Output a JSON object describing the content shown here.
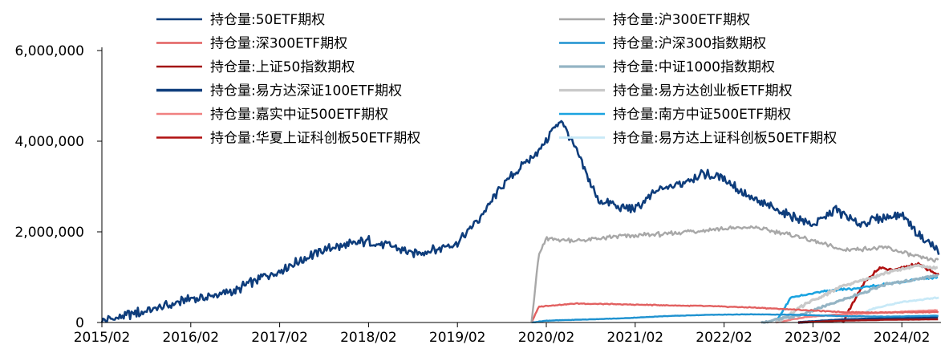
{
  "chart_data": {
    "type": "line",
    "title": "",
    "xlabel": "",
    "ylabel": "",
    "ylim": [
      0,
      6000000
    ],
    "y_ticks": [
      {
        "value": 0,
        "label": "0"
      },
      {
        "value": 2000000,
        "label": "2,000,000"
      },
      {
        "value": 4000000,
        "label": "4,000,000"
      },
      {
        "value": 6000000,
        "label": "6,000,000"
      }
    ],
    "x_ticks": [
      "2015/02",
      "2016/02",
      "2017/02",
      "2018/02",
      "2019/02",
      "2020/02",
      "2021/02",
      "2022/02",
      "2023/02",
      "2024/02"
    ],
    "x_range": [
      "2015/02",
      "2024/07"
    ],
    "grid": false,
    "legend_position": "top",
    "series": [
      {
        "name": "持仓量:50ETF期权",
        "color": "#0e3d7c",
        "width": 2.6,
        "points": [
          [
            "2015/02",
            20000
          ],
          [
            "2015/05",
            150000
          ],
          [
            "2015/08",
            260000
          ],
          [
            "2015/11",
            380000
          ],
          [
            "2016/02",
            520000
          ],
          [
            "2016/05",
            580000
          ],
          [
            "2016/08",
            700000
          ],
          [
            "2016/11",
            950000
          ],
          [
            "2017/02",
            1150000
          ],
          [
            "2017/05",
            1380000
          ],
          [
            "2017/08",
            1620000
          ],
          [
            "2017/11",
            1700000
          ],
          [
            "2018/02",
            1800000
          ],
          [
            "2018/05",
            1700000
          ],
          [
            "2018/08",
            1520000
          ],
          [
            "2018/11",
            1600000
          ],
          [
            "2019/02",
            1750000
          ],
          [
            "2019/05",
            2300000
          ],
          [
            "2019/08",
            3000000
          ],
          [
            "2019/11",
            3500000
          ],
          [
            "2020/01",
            3800000
          ],
          [
            "2020/04",
            4500000
          ],
          [
            "2020/06",
            3800000
          ],
          [
            "2020/09",
            2700000
          ],
          [
            "2020/12",
            2550000
          ],
          [
            "2021/02",
            2500000
          ],
          [
            "2021/05",
            2900000
          ],
          [
            "2021/08",
            3050000
          ],
          [
            "2021/11",
            3300000
          ],
          [
            "2022/02",
            3200000
          ],
          [
            "2022/05",
            2800000
          ],
          [
            "2022/08",
            2550000
          ],
          [
            "2022/11",
            2350000
          ],
          [
            "2023/02",
            2150000
          ],
          [
            "2023/05",
            2500000
          ],
          [
            "2023/08",
            2150000
          ],
          [
            "2023/11",
            2300000
          ],
          [
            "2024/02",
            2400000
          ],
          [
            "2024/04",
            2000000
          ],
          [
            "2024/06",
            1700000
          ],
          [
            "2024/07",
            1600000
          ]
        ]
      },
      {
        "name": "持仓量:沪300ETF期权",
        "color": "#a8a8a8",
        "width": 2.4,
        "points": [
          [
            "2019/12",
            0
          ],
          [
            "2020/01",
            1500000
          ],
          [
            "2020/02",
            1850000
          ],
          [
            "2020/06",
            1800000
          ],
          [
            "2020/12",
            1900000
          ],
          [
            "2021/06",
            1950000
          ],
          [
            "2021/12",
            2050000
          ],
          [
            "2022/06",
            2100000
          ],
          [
            "2022/12",
            1900000
          ],
          [
            "2023/06",
            1600000
          ],
          [
            "2023/12",
            1650000
          ],
          [
            "2024/04",
            1450000
          ],
          [
            "2024/07",
            1350000
          ]
        ]
      },
      {
        "name": "持仓量:深300ETF期权",
        "color": "#e26060",
        "width": 2.4,
        "points": [
          [
            "2019/12",
            0
          ],
          [
            "2020/01",
            350000
          ],
          [
            "2020/06",
            420000
          ],
          [
            "2020/12",
            400000
          ],
          [
            "2021/06",
            380000
          ],
          [
            "2021/12",
            360000
          ],
          [
            "2022/06",
            330000
          ],
          [
            "2022/12",
            280000
          ],
          [
            "2023/06",
            230000
          ],
          [
            "2023/12",
            220000
          ],
          [
            "2024/07",
            230000
          ]
        ]
      },
      {
        "name": "持仓量:沪深300指数期权",
        "color": "#1f92d0",
        "width": 2.4,
        "points": [
          [
            "2019/12",
            0
          ],
          [
            "2020/02",
            40000
          ],
          [
            "2020/12",
            90000
          ],
          [
            "2021/06",
            140000
          ],
          [
            "2021/12",
            170000
          ],
          [
            "2022/06",
            180000
          ],
          [
            "2022/12",
            170000
          ],
          [
            "2023/06",
            140000
          ],
          [
            "2023/12",
            130000
          ],
          [
            "2024/07",
            150000
          ]
        ]
      },
      {
        "name": "持仓量:上证50指数期权",
        "color": "#a31515",
        "width": 2.4,
        "points": [
          [
            "2022/12",
            0
          ],
          [
            "2023/06",
            40000
          ],
          [
            "2023/12",
            60000
          ],
          [
            "2024/07",
            70000
          ]
        ]
      },
      {
        "name": "持仓量:中证1000指数期权",
        "color": "#94b4c4",
        "width": 3.2,
        "points": [
          [
            "2022/07",
            0
          ],
          [
            "2022/12",
            150000
          ],
          [
            "2023/06",
            500000
          ],
          [
            "2023/12",
            850000
          ],
          [
            "2024/04",
            950000
          ],
          [
            "2024/07",
            1050000
          ]
        ]
      },
      {
        "name": "持仓量:易方达深证100ETF期权",
        "color": "#0e3d7c",
        "width": 3.4,
        "points": [
          [
            "2022/12",
            0
          ],
          [
            "2023/06",
            60000
          ],
          [
            "2023/12",
            90000
          ],
          [
            "2024/07",
            120000
          ]
        ]
      },
      {
        "name": "持仓量:易方达创业板ETF期权",
        "color": "#c9c9c9",
        "width": 3.2,
        "points": [
          [
            "2022/09",
            0
          ],
          [
            "2023/01",
            400000
          ],
          [
            "2023/06",
            800000
          ],
          [
            "2023/12",
            1100000
          ],
          [
            "2024/04",
            1250000
          ],
          [
            "2024/07",
            1200000
          ]
        ]
      },
      {
        "name": "持仓量:嘉实中证500ETF期权",
        "color": "#f08080",
        "width": 2.6,
        "points": [
          [
            "2022/09",
            0
          ],
          [
            "2023/01",
            120000
          ],
          [
            "2023/06",
            180000
          ],
          [
            "2023/12",
            220000
          ],
          [
            "2024/04",
            250000
          ],
          [
            "2024/07",
            270000
          ]
        ]
      },
      {
        "name": "持仓量:南方中证500ETF期权",
        "color": "#1aa3e0",
        "width": 2.6,
        "points": [
          [
            "2022/09",
            0
          ],
          [
            "2022/11",
            550000
          ],
          [
            "2023/04",
            700000
          ],
          [
            "2023/08",
            750000
          ],
          [
            "2023/12",
            850000
          ],
          [
            "2024/04",
            950000
          ],
          [
            "2024/07",
            1000000
          ]
        ]
      },
      {
        "name": "持仓量:华夏上证科创板50ETF期权",
        "color": "#b01010",
        "width": 2.6,
        "points": [
          [
            "2023/06",
            0
          ],
          [
            "2023/09",
            900000
          ],
          [
            "2023/11",
            1200000
          ],
          [
            "2024/01",
            1150000
          ],
          [
            "2024/04",
            1300000
          ],
          [
            "2024/07",
            1050000
          ]
        ]
      },
      {
        "name": "持仓量:易方达上证科创板50ETF期权",
        "color": "#c8e9f7",
        "width": 2.8,
        "points": [
          [
            "2023/06",
            0
          ],
          [
            "2023/10",
            300000
          ],
          [
            "2024/02",
            450000
          ],
          [
            "2024/07",
            550000
          ]
        ]
      }
    ]
  }
}
